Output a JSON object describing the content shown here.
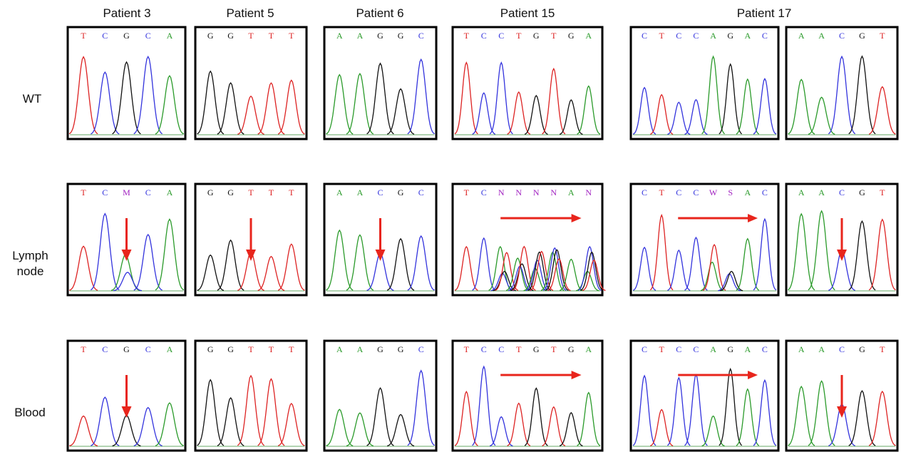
{
  "columns": [
    "Patient 3",
    "Patient 5",
    "Patient 6",
    "Patient 15",
    "Patient 17"
  ],
  "rows": [
    {
      "label": "WT",
      "panels": [
        {
          "bases": [
            "T",
            "C",
            "G",
            "C",
            "A"
          ]
        },
        {
          "bases": [
            "G",
            "G",
            "T",
            "T",
            "T"
          ]
        },
        {
          "bases": [
            "A",
            "A",
            "G",
            "G",
            "C"
          ]
        },
        {
          "bases": [
            "T",
            "C",
            "C",
            "T",
            "G",
            "T",
            "G",
            "A"
          ]
        },
        {
          "bases": [
            "C",
            "T",
            "C",
            "C",
            "A",
            "G",
            "A",
            "C"
          ]
        },
        {
          "bases": [
            "A",
            "A",
            "C",
            "G",
            "T"
          ]
        }
      ]
    },
    {
      "label": "Lymph node",
      "panels": [
        {
          "bases": [
            "T",
            "C",
            "M",
            "C",
            "A"
          ]
        },
        {
          "bases": [
            "G",
            "G",
            "T",
            "T",
            "T"
          ]
        },
        {
          "bases": [
            "A",
            "A",
            "C",
            "G",
            "C"
          ]
        },
        {
          "bases": [
            "T",
            "C",
            "N",
            "N",
            "N",
            "N",
            "A",
            "N"
          ]
        },
        {
          "bases": [
            "C",
            "T",
            "C",
            "C",
            "W",
            "S",
            "A",
            "C"
          ]
        },
        {
          "bases": [
            "A",
            "A",
            "C",
            "G",
            "T"
          ]
        }
      ]
    },
    {
      "label": "Blood",
      "panels": [
        {
          "bases": [
            "T",
            "C",
            "G",
            "C",
            "A"
          ]
        },
        {
          "bases": [
            "G",
            "G",
            "T",
            "T",
            "T"
          ]
        },
        {
          "bases": [
            "A",
            "A",
            "G",
            "G",
            "C"
          ]
        },
        {
          "bases": [
            "T",
            "C",
            "C",
            "T",
            "G",
            "T",
            "G",
            "A"
          ]
        },
        {
          "bases": [
            "C",
            "T",
            "C",
            "C",
            "A",
            "G",
            "A",
            "C"
          ]
        },
        {
          "bases": [
            "A",
            "A",
            "C",
            "G",
            "T"
          ]
        }
      ]
    }
  ]
}
